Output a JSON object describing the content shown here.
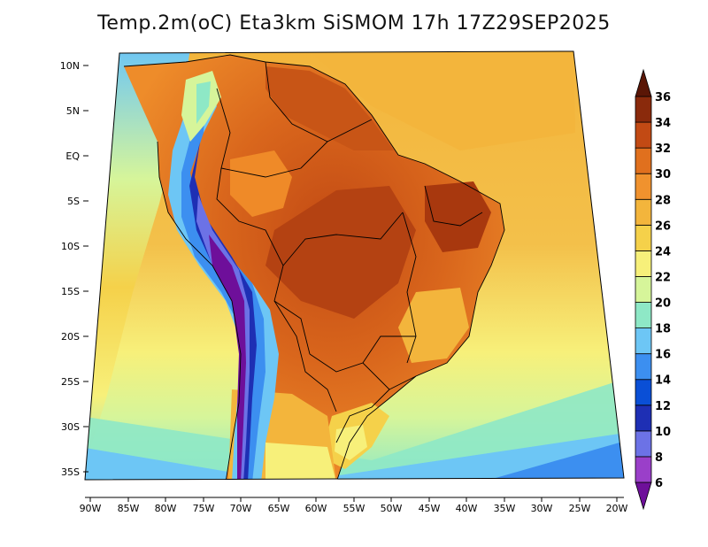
{
  "title": "Temp.2m(oC) Eta3km SiSMOM 17h 17Z29SEP2025",
  "map": {
    "lat_ticks": [
      "10N",
      "5N",
      "EQ",
      "5S",
      "10S",
      "15S",
      "20S",
      "25S",
      "30S",
      "35S"
    ],
    "lon_ticks": [
      "90W",
      "85W",
      "80W",
      "75W",
      "70W",
      "65W",
      "60W",
      "55W",
      "50W",
      "45W",
      "40W",
      "35W",
      "30W",
      "25W",
      "20W"
    ]
  },
  "colorbar": {
    "levels": [
      "6",
      "8",
      "10",
      "12",
      "14",
      "16",
      "18",
      "20",
      "22",
      "24",
      "26",
      "28",
      "30",
      "32",
      "34",
      "36"
    ],
    "colors": [
      "#6e0f9a",
      "#9a3fc9",
      "#6c72e6",
      "#1e2fb4",
      "#0a4fd6",
      "#3c8ff0",
      "#6dc6f5",
      "#8ee8c6",
      "#d6f59a",
      "#f7f07a",
      "#f5d14a",
      "#f3b53c",
      "#f0922e",
      "#e0701e",
      "#c24a14",
      "#8a2a0c",
      "#5a1606"
    ]
  }
}
